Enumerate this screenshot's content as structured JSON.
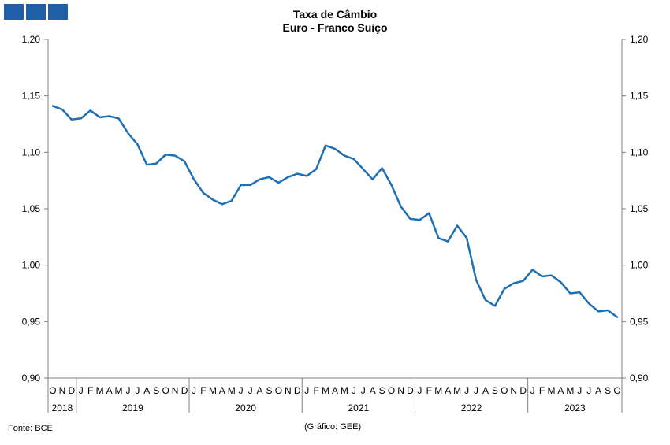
{
  "title": "Taxa de Câmbio",
  "subtitle": "Euro - Franco Suiço",
  "source": "Fonte: BCE",
  "credit": "(Gráfico: GEE)",
  "colors": {
    "line": "#1f6fb4",
    "logo": "#1f5fa8",
    "axis": "#808080"
  },
  "chart_data": {
    "type": "line",
    "title": "Taxa de Câmbio",
    "subtitle": "Euro - Franco Suiço",
    "ylim": [
      0.9,
      1.2
    ],
    "yticks": [
      "1,20",
      "1,15",
      "1,10",
      "1,05",
      "1,00",
      "0,95",
      "0,90"
    ],
    "month_labels": [
      "O",
      "N",
      "D",
      "J",
      "F",
      "M",
      "A",
      "M",
      "J",
      "J",
      "A",
      "S",
      "O",
      "N",
      "D",
      "J",
      "F",
      "M",
      "A",
      "M",
      "J",
      "J",
      "A",
      "S",
      "O",
      "N",
      "D",
      "J",
      "F",
      "M",
      "A",
      "M",
      "J",
      "J",
      "A",
      "S",
      "O",
      "N",
      "D",
      "J",
      "F",
      "M",
      "A",
      "M",
      "J",
      "J",
      "A",
      "S",
      "O",
      "N",
      "D",
      "J",
      "F",
      "M",
      "A",
      "M",
      "J",
      "J",
      "A",
      "S",
      "O"
    ],
    "years": [
      {
        "label": "2018",
        "start": 0,
        "count": 3
      },
      {
        "label": "2019",
        "start": 3,
        "count": 12
      },
      {
        "label": "2020",
        "start": 15,
        "count": 12
      },
      {
        "label": "2021",
        "start": 27,
        "count": 12
      },
      {
        "label": "2022",
        "start": 39,
        "count": 12
      },
      {
        "label": "2023",
        "start": 51,
        "count": 10
      }
    ],
    "grid": false,
    "legend": "none",
    "series": [
      {
        "values": [
          1.141,
          1.138,
          1.129,
          1.13,
          1.137,
          1.131,
          1.132,
          1.13,
          1.117,
          1.107,
          1.089,
          1.09,
          1.098,
          1.097,
          1.092,
          1.076,
          1.064,
          1.058,
          1.054,
          1.057,
          1.071,
          1.071,
          1.076,
          1.078,
          1.073,
          1.078,
          1.081,
          1.079,
          1.085,
          1.106,
          1.103,
          1.097,
          1.094,
          1.085,
          1.076,
          1.086,
          1.071,
          1.052,
          1.041,
          1.04,
          1.046,
          1.024,
          1.021,
          1.035,
          1.024,
          0.987,
          0.969,
          0.964,
          0.979,
          0.984,
          0.986,
          0.996,
          0.99,
          0.991,
          0.985,
          0.975,
          0.976,
          0.966,
          0.959,
          0.96,
          0.954
        ]
      }
    ]
  }
}
